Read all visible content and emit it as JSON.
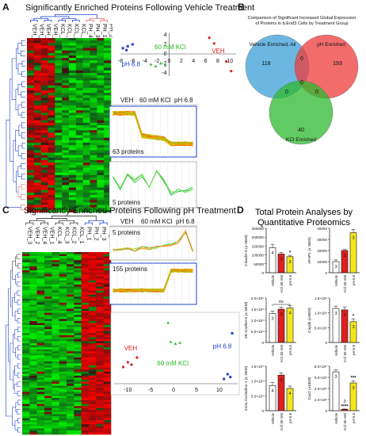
{
  "panels": {
    "A": {
      "label": "A",
      "title": "Significantly Enriched Proteins Following Vehicle Treatment",
      "columns": [
        "VEH_2",
        "VEH_3",
        "VEH_4",
        "VEH_1",
        "KCL_3",
        "KCL_2",
        "KCL_4",
        "KCL_1",
        "PH_4",
        "PH_3",
        "PH_1",
        "PH_2"
      ],
      "pca": {
        "x_ticks": [
          "-8",
          "-6",
          "-4",
          "-2",
          "0",
          "2",
          "4",
          "6",
          "8",
          "10"
        ],
        "y_ticks": [
          "4",
          "2",
          "0",
          "-2",
          "-4"
        ],
        "group_labels": {
          "ph": "pH 6.8",
          "kcl": "60 mM KCl",
          "veh": "VEH"
        }
      },
      "profile_headers": [
        "VEH",
        "60 mM KCl",
        "pH 6.8"
      ],
      "cluster1_label": "63 proteins",
      "cluster2_label": "5 proteins"
    },
    "B": {
      "label": "B",
      "title_line1": "Comparison of Significant Increased Global Expression",
      "title_line2": "of Proteins in b.End3 Cells by Treatment Group",
      "sets": [
        {
          "name": "Vehicle Enriched, All",
          "count": "118",
          "color": "#3a9fd8"
        },
        {
          "name": "pH Enriched",
          "count": "193",
          "color": "#ee3b3b"
        },
        {
          "name": "KCl Enriched",
          "count": "40",
          "color": "#2eb82e"
        }
      ],
      "intersections": {
        "veh_ph": "0",
        "veh_kcl": "0",
        "ph_kcl": "0",
        "all": "0"
      }
    },
    "C": {
      "label": "C",
      "title": "Significantly Enriched Proteins Following pH Treatment",
      "columns": [
        "VEH_3",
        "VEH_2",
        "VEH_4",
        "VEH_1",
        "KCL_4",
        "KCL_3",
        "KCL_2",
        "KCL_1",
        "PH_1",
        "PH_2",
        "PH_3",
        "PH_4"
      ],
      "profile_headers": [
        "VEH",
        "60 mM KCl",
        "pH 6.8"
      ],
      "cluster1_label": "5 proteins",
      "cluster2_label": "155 proteins",
      "pca": {
        "x_ticks": [
          "-10",
          "-5",
          "0",
          "5",
          "10"
        ],
        "group_labels": {
          "veh": "VEH",
          "kcl": "60 mM KCl",
          "ph": "pH 6.8"
        }
      }
    },
    "D": {
      "label": "D",
      "title_line1": "Total Protein Analyses by",
      "title_line2": "Quantitative Proteomics",
      "x_categories": [
        "Vehicle",
        "KCl 60 mM",
        "pH 6.8"
      ],
      "charts": [
        {
          "ylabel": "Claudin-5 (± SEM)",
          "yticks": [
            "250000",
            "200000",
            "150000",
            "100000",
            "50000",
            "0"
          ],
          "ymax": 250000,
          "values": [
            140000,
            105000,
            90000
          ],
          "errs": [
            20000,
            10000,
            8000
          ],
          "ns": [
            "4",
            "3",
            "3"
          ],
          "stars": [
            "",
            "",
            "*"
          ],
          "ns_label": ""
        },
        {
          "ylabel": "AFAP1 (± SEM)",
          "yticks": [
            "40000",
            "30000",
            "20000",
            "10000",
            "0"
          ],
          "ymax": 40000,
          "values": [
            10000,
            20000,
            36000
          ],
          "errs": [
            1500,
            1000,
            3000
          ],
          "ns": [
            "3",
            "3",
            "3"
          ],
          "stars": [
            "",
            "",
            "**"
          ],
          "ns_label": ""
        },
        {
          "ylabel": "VE-Cadherin (± SEM)",
          "yticks": [
            "2.0×10⁶",
            "1.5×10⁶",
            "1.0×10⁶",
            "5.0×10⁵",
            "0"
          ],
          "ymax": 2000000,
          "values": [
            1300000,
            1500000,
            1550000
          ],
          "errs": [
            120000,
            80000,
            120000
          ],
          "ns": [
            "3",
            "3",
            "4"
          ],
          "stars": [
            "",
            "",
            ""
          ],
          "ns_label": "ns"
        },
        {
          "ylabel": "Cnpd6 (±SEM)",
          "yticks": [
            "1.5×10⁶",
            "1.0×10⁶",
            "5.0×10⁵",
            "0"
          ],
          "ymax": 1500000,
          "values": [
            1150000,
            1100000,
            700000
          ],
          "errs": [
            80000,
            100000,
            100000
          ],
          "ns": [
            "3",
            "3",
            "3"
          ],
          "stars": [
            "",
            "",
            "*"
          ],
          "ns_label": ""
        },
        {
          "ylabel": "Zona Occludins-1 (± SEM)",
          "yticks": [
            "1.5×10⁵",
            "1.0×10⁵",
            "5.0×10⁴",
            "0"
          ],
          "ymax": 150000,
          "values": [
            85000,
            120000,
            75000
          ],
          "errs": [
            10000,
            8000,
            8000
          ],
          "ns": [
            "4",
            "3",
            "4"
          ],
          "stars": [
            "",
            "",
            ""
          ],
          "ns_label": ""
        },
        {
          "ylabel": "Cux2 (±SEM)",
          "yticks": [
            "8.0×10⁵",
            "6.0×10⁵",
            "4.0×10⁵",
            "2.0×10⁵",
            "0"
          ],
          "ymax": 800000,
          "values": [
            700000,
            25000,
            500000
          ],
          "errs": [
            40000,
            5000,
            40000
          ],
          "ns": [
            "3",
            "3",
            "3"
          ],
          "stars": [
            "",
            "****",
            "***"
          ],
          "ns_label": ""
        }
      ]
    }
  },
  "colors": {
    "veh": "#e02020",
    "kcl": "#22bb22",
    "ph": "#1a3fd0",
    "dendro_blue": "#1a3fd0",
    "dendro_red": "#e06060",
    "bar_pH": "#f5e61c",
    "bar_kcl": "#e02020"
  }
}
